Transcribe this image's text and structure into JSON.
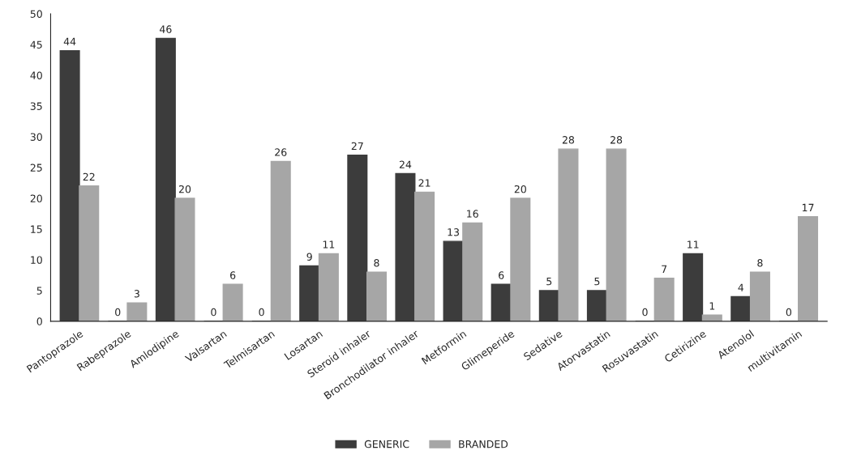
{
  "chart_data": {
    "type": "bar",
    "categories": [
      "Pantoprazole",
      "Rabeprazole",
      "Amlodipine",
      "Valsartan",
      "Telmisartan",
      "Losartan",
      "Steroid inhaler",
      "Bronchodilator inhaler",
      "Metformin",
      "Glimeperide",
      "Sedative",
      "Atorvastatin",
      "Rosuvastatin",
      "Cetirizine",
      "Atenolol",
      "multivitamin"
    ],
    "series": [
      {
        "name": "GENERIC",
        "color": "#3c3c3c",
        "values": [
          44,
          0,
          46,
          0,
          0,
          9,
          27,
          24,
          13,
          6,
          5,
          5,
          0,
          11,
          4,
          0
        ]
      },
      {
        "name": "BRANDED",
        "color": "#a6a6a6",
        "values": [
          22,
          3,
          20,
          6,
          26,
          11,
          8,
          21,
          16,
          20,
          28,
          28,
          7,
          1,
          8,
          17
        ]
      }
    ],
    "ylim": [
      0,
      50
    ],
    "yticks": [
      0,
      5,
      10,
      15,
      20,
      25,
      30,
      35,
      40,
      45,
      50
    ],
    "data_labels": true,
    "grid": false,
    "legend": "bottom"
  }
}
